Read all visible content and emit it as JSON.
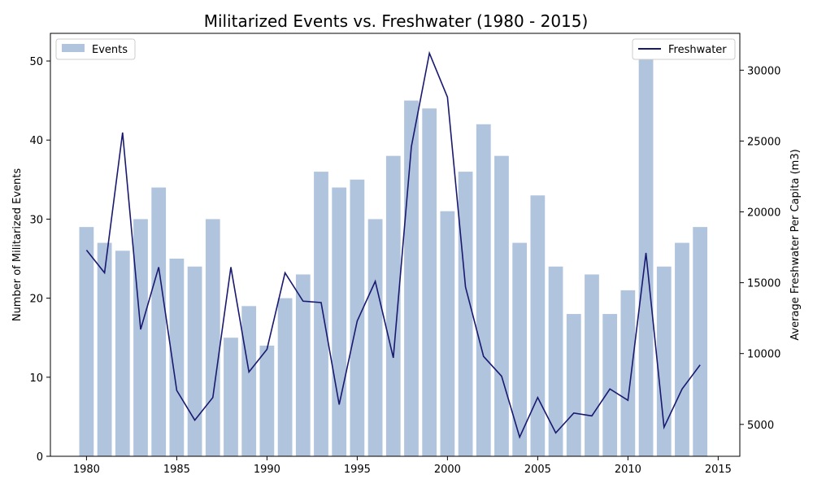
{
  "chart_data": {
    "type": "bar+line",
    "title": "Militarized Events vs. Freshwater (1980 - 2015)",
    "xlabel": "",
    "ylabel_left": "Number of Militarized Events",
    "ylabel_right": "Average Freshwater Per Capita (m3)",
    "xlim": [
      1978,
      2016.2
    ],
    "ylim_left": [
      0,
      53.5
    ],
    "ylim_right": [
      2750,
      32600
    ],
    "x_ticks": [
      1980,
      1985,
      1990,
      1995,
      2000,
      2005,
      2010,
      2015
    ],
    "y_left_ticks": [
      0,
      10,
      20,
      30,
      40,
      50
    ],
    "y_right_ticks": [
      5000,
      10000,
      15000,
      20000,
      25000,
      30000
    ],
    "legend_left": {
      "position": "top-left",
      "entries": [
        "Events"
      ]
    },
    "legend_right": {
      "position": "top-right",
      "entries": [
        "Freshwater"
      ]
    },
    "colors": {
      "bars": "#b0c4de",
      "line": "#191970"
    },
    "grid": false,
    "events": {
      "name": "Events",
      "x": [
        1980,
        1981,
        1982,
        1983,
        1984,
        1985,
        1986,
        1987,
        1988,
        1989,
        1990,
        1991,
        1992,
        1993,
        1994,
        1995,
        1996,
        1997,
        1998,
        1999,
        2000,
        2001,
        2002,
        2003,
        2004,
        2005,
        2006,
        2007,
        2008,
        2009,
        2010,
        2011,
        2012,
        2013,
        2014
      ],
      "values": [
        29,
        27,
        26,
        30,
        34,
        25,
        24,
        30,
        15,
        19,
        14,
        20,
        23,
        36,
        34,
        35,
        30,
        38,
        45,
        44,
        31,
        36,
        42,
        38,
        27,
        33,
        24,
        18,
        23,
        18,
        21,
        51,
        24,
        27,
        29
      ]
    },
    "freshwater": {
      "name": "Freshwater",
      "x": [
        1980,
        1981,
        1982,
        1983,
        1984,
        1985,
        1986,
        1987,
        1988,
        1989,
        1990,
        1991,
        1992,
        1993,
        1994,
        1995,
        1996,
        1997,
        1998,
        1999,
        2000,
        2001,
        2002,
        2003,
        2004,
        2005,
        2006,
        2007,
        2008,
        2009,
        2010,
        2011,
        2012,
        2013,
        2014
      ],
      "values": [
        17300,
        15700,
        25600,
        11700,
        16100,
        7400,
        5300,
        6900,
        16100,
        8700,
        10300,
        15700,
        13700,
        13600,
        6400,
        12300,
        15100,
        9700,
        24600,
        31200,
        28100,
        14700,
        9800,
        8400,
        4100,
        6900,
        4400,
        5800,
        5600,
        7500,
        6700,
        17100,
        4800,
        7500,
        9200
      ]
    }
  }
}
